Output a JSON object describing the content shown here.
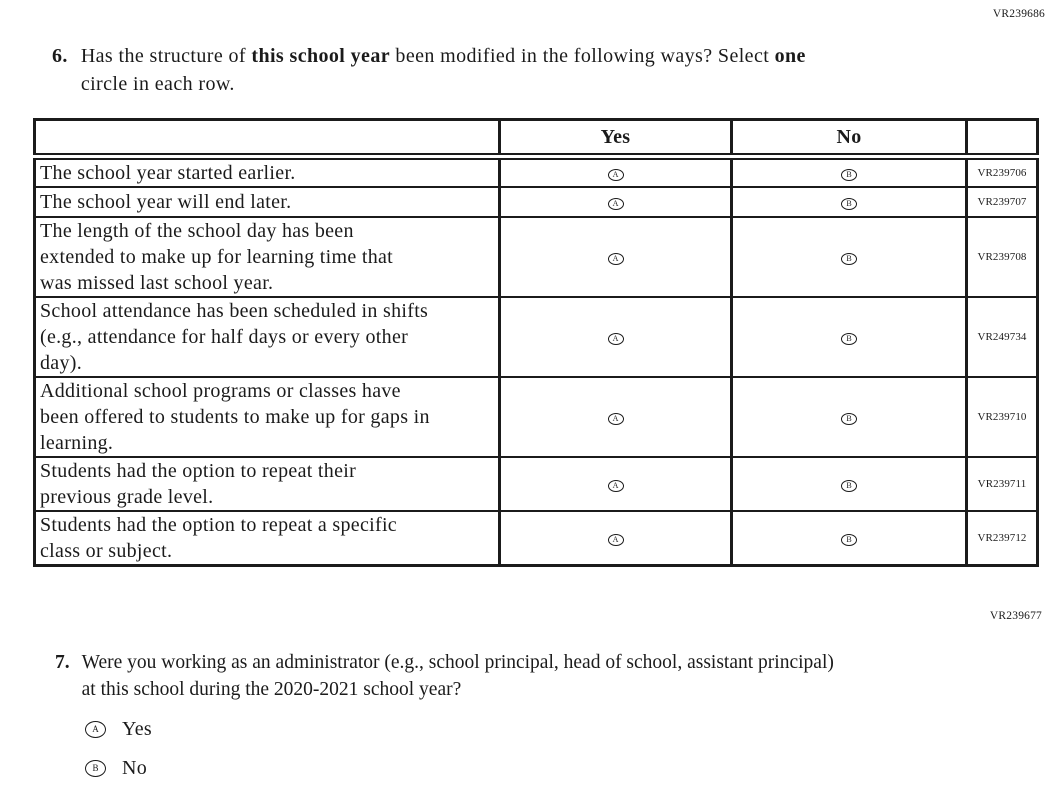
{
  "page": {
    "top_code": "VR239686",
    "section_code": "VR239677"
  },
  "q6": {
    "number": "6.",
    "segments": [
      {
        "text": "Has the structure of ",
        "bold": false
      },
      {
        "text": "this school year",
        "bold": true
      },
      {
        "text": " been modified in the following ways? Select ",
        "bold": false
      },
      {
        "text": "one",
        "bold": true
      },
      {
        "text": "\ncircle in each row.",
        "bold": false
      }
    ],
    "table": {
      "col_headers": [
        "Yes",
        "No"
      ],
      "option_letters": [
        "A",
        "B"
      ],
      "rows": [
        {
          "statement": "The school year started earlier.",
          "code": "VR239706"
        },
        {
          "statement": "The school year will end later.",
          "code": "VR239707"
        },
        {
          "statement": "The length of the school day has been\nextended to make up for learning time that\nwas missed last school year.",
          "code": "VR239708"
        },
        {
          "statement": "School attendance has been scheduled in shifts\n(e.g., attendance for half days or every other\nday).",
          "code": "VR249734"
        },
        {
          "statement": "Additional school programs or classes have\nbeen offered to students to make up for gaps in\nlearning.",
          "code": "VR239710"
        },
        {
          "statement": "Students had the option to repeat their\nprevious grade level.",
          "code": "VR239711"
        },
        {
          "statement": "Students had the option to repeat a specific\nclass or subject.",
          "code": "VR239712"
        }
      ]
    }
  },
  "q7": {
    "number": "7.",
    "text": "Were you working as an administrator (e.g., school principal, head of school, assistant principal)\nat this school during the 2020-2021 school year?",
    "options": [
      {
        "letter": "A",
        "label": "Yes"
      },
      {
        "letter": "B",
        "label": "No"
      }
    ]
  },
  "colors": {
    "text": "#1b1b1b",
    "border": "#1b1b1b",
    "background": "#ffffff"
  }
}
